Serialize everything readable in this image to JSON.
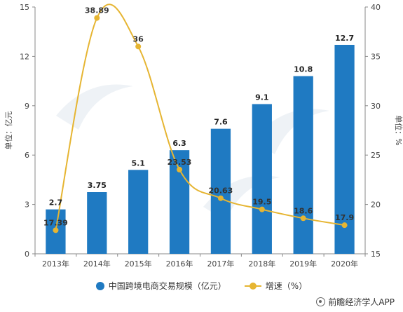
{
  "chart_data": {
    "type": "bar",
    "categories": [
      "2013年",
      "2014年",
      "2015年",
      "2016年",
      "2017年",
      "2018年",
      "2019年",
      "2020年"
    ],
    "series": [
      {
        "name": "中国跨境电商交易规模（亿元）",
        "type": "bar",
        "axis": "left",
        "color": "#1f7ac2",
        "values": [
          2.7,
          3.75,
          5.1,
          6.3,
          7.6,
          9.1,
          10.8,
          12.7
        ]
      },
      {
        "name": "增速（%）",
        "type": "line",
        "axis": "right",
        "color": "#e6b532",
        "values": [
          17.39,
          38.89,
          36,
          23.53,
          20.63,
          19.5,
          18.6,
          17.9
        ]
      }
    ],
    "ylabel": "单位：亿元",
    "y2label": "单位：%",
    "ylim": [
      0,
      15
    ],
    "yticks": [
      0,
      3,
      6,
      9,
      12,
      15
    ],
    "y2lim": [
      15,
      40
    ],
    "y2ticks": [
      15,
      20,
      25,
      30,
      35,
      40
    ],
    "grid": false,
    "legend_position": "bottom"
  },
  "source": "前瞻经济学人APP"
}
